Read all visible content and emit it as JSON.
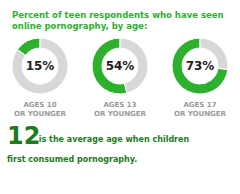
{
  "chart_data": {
    "type": "pie",
    "title": "Percent of teen respondents who have seen\nonline pornography, by age:",
    "series": [
      {
        "name": "AGES 10\nOR YOUNGER",
        "values": [
          15,
          85
        ],
        "value_labels": [
          "15%",
          null
        ],
        "colors": [
          "#2db02d",
          "#d8d8d8"
        ]
      },
      {
        "name": "AGES 13\nOR YOUNGER",
        "values": [
          54,
          46
        ],
        "value_labels": [
          "54%",
          null
        ],
        "colors": [
          "#2db02d",
          "#d8d8d8"
        ]
      },
      {
        "name": "AGES 17\nOR YOUNGER",
        "values": [
          73,
          27
        ],
        "value_labels": [
          "73%",
          null
        ],
        "colors": [
          "#2db02d",
          "#d8d8d8"
        ]
      }
    ],
    "annotations": [
      "12",
      " is the average age when children",
      "first consumed pornography."
    ]
  }
}
